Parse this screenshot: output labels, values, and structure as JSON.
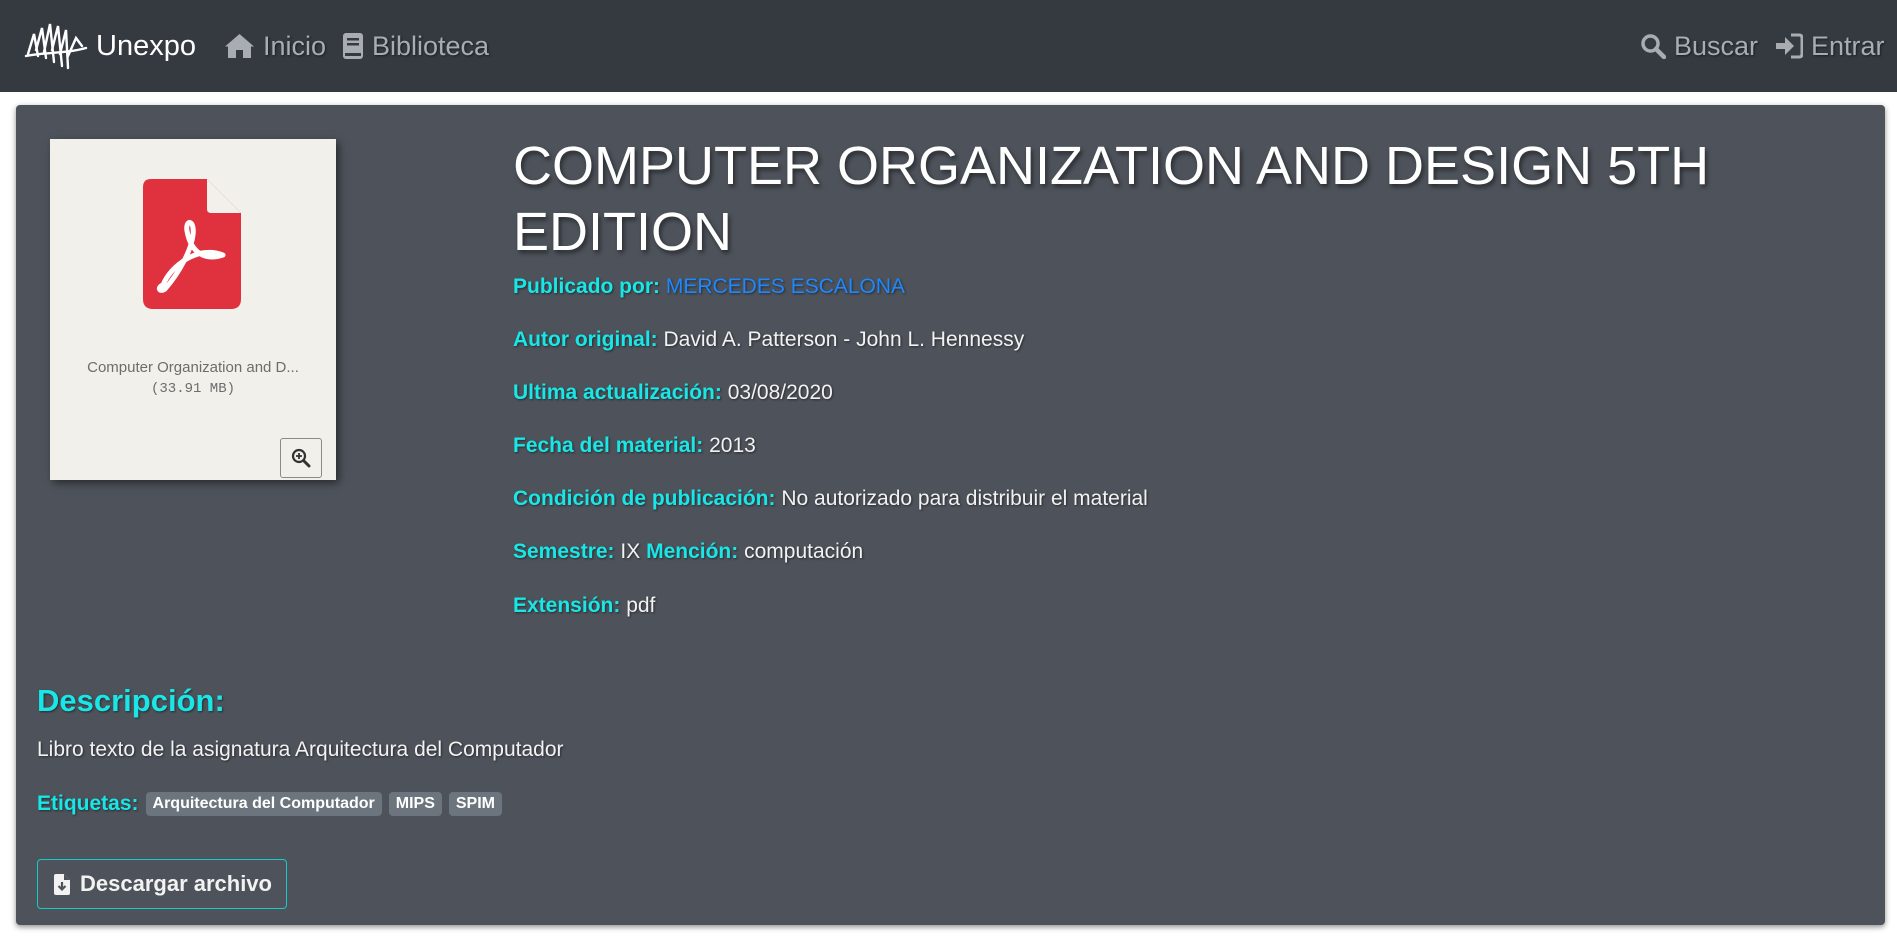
{
  "nav": {
    "brand": "Unexpo",
    "inicio": "Inicio",
    "biblioteca": "Biblioteca",
    "buscar": "Buscar",
    "entrar": "Entrar"
  },
  "material": {
    "title": "COMPUTER ORGANIZATION AND DESIGN 5TH EDITION",
    "thumbnail": {
      "file_name": "Computer Organization and D...",
      "file_size": "(33.91 MB)"
    },
    "publicado_por_label": "Publicado por:",
    "publicado_por": "MERCEDES ESCALONA",
    "autor_label": "Autor original:",
    "autor": "David A. Patterson - John L. Hennessy",
    "actualizacion_label": "Ultima actualización:",
    "actualizacion": "03/08/2020",
    "fecha_label": "Fecha del material:",
    "fecha": "2013",
    "condicion_label": "Condición de publicación:",
    "condicion": "No autorizado para distribuir el material",
    "semestre_label": "Semestre:",
    "semestre": "IX",
    "mencion_label": "Mención:",
    "mencion": "computación",
    "extension_label": "Extensión:",
    "extension": "pdf"
  },
  "description": {
    "heading": "Descripción:",
    "text": "Libro texto de la asignatura Arquitectura del Computador"
  },
  "tags": {
    "label": "Etiquetas:",
    "items": [
      "Arquitectura del Computador",
      "MIPS",
      "SPIM"
    ]
  },
  "download": {
    "label": "Descargar archivo"
  },
  "colors": {
    "navbar": "#343a40",
    "card": "#4e535b",
    "label_accent": "#19e6e6",
    "link": "#1e88ff",
    "pdf_red": "#e0313f"
  }
}
